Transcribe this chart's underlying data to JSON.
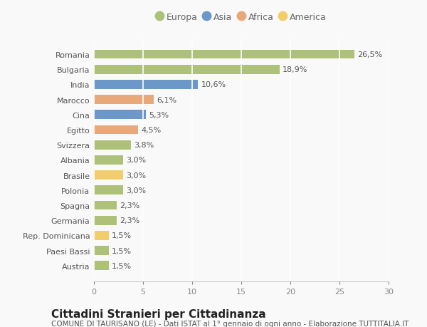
{
  "categories": [
    "Romania",
    "Bulgaria",
    "India",
    "Marocco",
    "Cina",
    "Egitto",
    "Svizzera",
    "Albania",
    "Brasile",
    "Polonia",
    "Spagna",
    "Germania",
    "Rep. Dominicana",
    "Paesi Bassi",
    "Austria"
  ],
  "values": [
    26.5,
    18.9,
    10.6,
    6.1,
    5.3,
    4.5,
    3.8,
    3.0,
    3.0,
    3.0,
    2.3,
    2.3,
    1.5,
    1.5,
    1.5
  ],
  "labels": [
    "26,5%",
    "18,9%",
    "10,6%",
    "6,1%",
    "5,3%",
    "4,5%",
    "3,8%",
    "3,0%",
    "3,0%",
    "3,0%",
    "2,3%",
    "2,3%",
    "1,5%",
    "1,5%",
    "1,5%"
  ],
  "continents": [
    "Europa",
    "Europa",
    "Asia",
    "Africa",
    "Asia",
    "Africa",
    "Europa",
    "Europa",
    "America",
    "Europa",
    "Europa",
    "Europa",
    "America",
    "Europa",
    "Europa"
  ],
  "colors": {
    "Europa": "#adc178",
    "Asia": "#6b98c9",
    "Africa": "#e8a87a",
    "America": "#f2ce6b"
  },
  "legend_order": [
    "Europa",
    "Asia",
    "Africa",
    "America"
  ],
  "xlim": [
    0,
    30
  ],
  "xticks": [
    0,
    5,
    10,
    15,
    20,
    25,
    30
  ],
  "title": "Cittadini Stranieri per Cittadinanza",
  "subtitle": "COMUNE DI TAURISANO (LE) - Dati ISTAT al 1° gennaio di ogni anno - Elaborazione TUTTITALIA.IT",
  "background_color": "#f9f9f9",
  "grid_color": "#ffffff",
  "bar_height": 0.6,
  "title_fontsize": 11,
  "subtitle_fontsize": 7.5,
  "label_fontsize": 8,
  "tick_fontsize": 8
}
